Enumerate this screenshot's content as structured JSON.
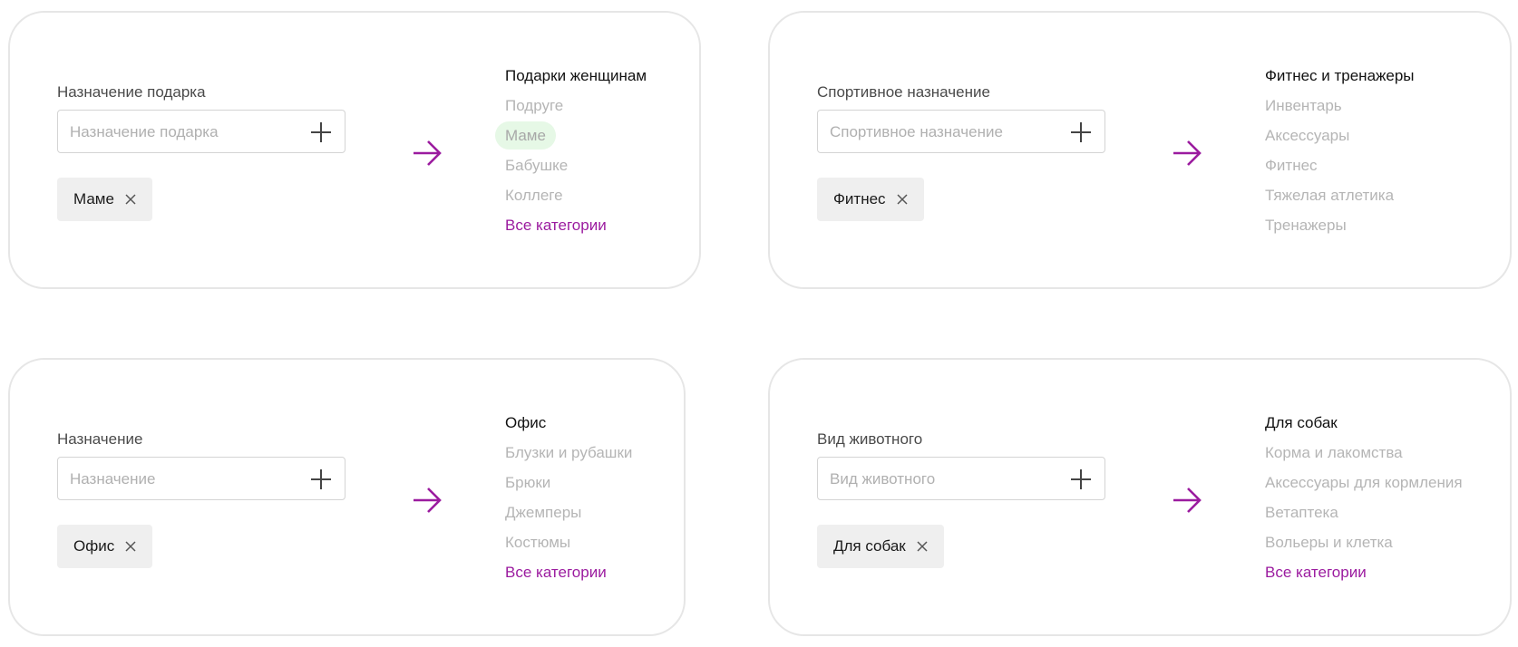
{
  "accent_color": "#9b1b9f",
  "highlight_color": "#e6f8e6",
  "cards": [
    {
      "label": "Назначение подарка",
      "placeholder": "Назначение подарка",
      "chip": "Маме",
      "list_title": "Подарки женщинам",
      "items": [
        "Подруге",
        "Маме",
        "Бабушке",
        "Коллеге"
      ],
      "highlighted_item": "Маме",
      "all_link": "Все категории"
    },
    {
      "label": "Спортивное назначение",
      "placeholder": "Спортивное назначение",
      "chip": "Фитнес",
      "list_title": "Фитнес и тренажеры",
      "items": [
        "Инвентарь",
        "Аксессуары",
        "Фитнес",
        "Тяжелая атлетика",
        "Тренажеры"
      ]
    },
    {
      "label": "Назначение",
      "placeholder": "Назначение",
      "chip": "Офис",
      "list_title": "Офис",
      "items": [
        "Блузки и рубашки",
        "Брюки",
        "Джемперы",
        "Костюмы"
      ],
      "all_link": "Все категории"
    },
    {
      "label": "Вид животного",
      "placeholder": "Вид животного",
      "chip": "Для собак",
      "list_title": "Для собак",
      "items": [
        "Корма и лакомства",
        "Аксессуары для кормления",
        "Ветаптека",
        "Вольеры и клетка"
      ],
      "all_link": "Все категории"
    }
  ]
}
